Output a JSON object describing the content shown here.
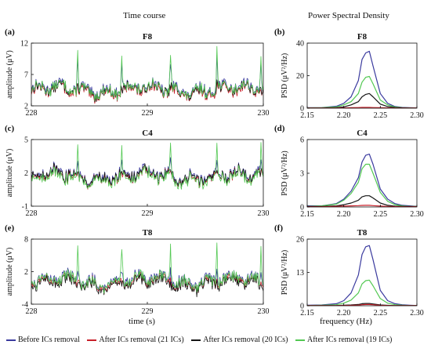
{
  "column_headers": {
    "left": "Time course",
    "right": "Power Spectral Density"
  },
  "x_axis_labels": {
    "time": "time (s)",
    "frequency": "frequency (Hz)"
  },
  "colors": {
    "before": "#3a3a9e",
    "ica21": "#c8202a",
    "ica20": "#151515",
    "ica19": "#52c852"
  },
  "legend": [
    {
      "key": "before",
      "label": "Before ICs removal"
    },
    {
      "key": "ica21",
      "label": "After ICs removal (21 ICs)"
    },
    {
      "key": "ica20",
      "label": "After ICs removal (20 ICs)"
    },
    {
      "key": "ica19",
      "label": "After ICs removal (19 ICs)"
    }
  ],
  "chart_data": [
    {
      "panel": "(a)",
      "type": "line",
      "title": "F8",
      "ylabel": "amplitude (μV)",
      "xlim": [
        228,
        230
      ],
      "ylim": [
        2,
        12
      ],
      "x_ticks": [
        "228",
        "229",
        "230"
      ],
      "y_ticks": [
        2,
        7,
        12
      ],
      "spike_times": [
        228.4,
        228.78,
        229.2,
        229.6,
        229.98
      ],
      "series": [
        {
          "key": "before",
          "baseline": 4.8,
          "spike_peak": 9.5
        },
        {
          "key": "ica21",
          "baseline": 4.3,
          "spike_peak": 5.3
        },
        {
          "key": "ica20",
          "baseline": 4.5,
          "spike_peak": 5.5
        },
        {
          "key": "ica19",
          "baseline": 4.6,
          "spike_peak": 10.8
        }
      ]
    },
    {
      "panel": "(b)",
      "type": "line",
      "title": "F8",
      "ylabel": "PSD (μV²/Hz)",
      "xlim": [
        2.15,
        2.3
      ],
      "ylim": [
        0,
        40
      ],
      "x_ticks": [
        "2.15",
        "2.20",
        "2.25",
        "2.30"
      ],
      "y_ticks": [
        0,
        20,
        40
      ],
      "x": [
        2.15,
        2.17,
        2.19,
        2.2,
        2.21,
        2.22,
        2.225,
        2.23,
        2.235,
        2.24,
        2.25,
        2.26,
        2.27,
        2.28,
        2.29,
        2.3
      ],
      "series": [
        {
          "key": "before",
          "values": [
            0.3,
            0.4,
            1.2,
            3.0,
            7.0,
            17.0,
            30.0,
            34.0,
            35.0,
            26.0,
            9.0,
            3.0,
            1.0,
            0.5,
            0.3,
            0.2
          ]
        },
        {
          "key": "ica19",
          "values": [
            0.2,
            0.3,
            0.8,
            2.0,
            4.0,
            9.0,
            16.0,
            19.0,
            19.5,
            15.0,
            5.0,
            2.0,
            0.7,
            0.3,
            0.2,
            0.1
          ]
        },
        {
          "key": "ica20",
          "values": [
            0.1,
            0.1,
            0.3,
            0.8,
            2.0,
            4.0,
            7.0,
            8.5,
            9.0,
            7.0,
            2.5,
            1.0,
            0.4,
            0.2,
            0.1,
            0.1
          ]
        },
        {
          "key": "ica21",
          "values": [
            0.05,
            0.05,
            0.1,
            0.2,
            0.3,
            0.4,
            0.5,
            0.5,
            0.5,
            0.4,
            0.3,
            0.2,
            0.1,
            0.05,
            0.05,
            0.05
          ]
        }
      ]
    },
    {
      "panel": "(c)",
      "type": "line",
      "title": "C4",
      "ylabel": "amplitude (μV)",
      "xlim": [
        228,
        230
      ],
      "ylim": [
        -1,
        5
      ],
      "x_ticks": [
        "228",
        "229",
        "230"
      ],
      "y_ticks": [
        -1,
        2,
        5
      ],
      "spike_times": [
        228.4,
        228.78,
        229.2,
        229.6,
        229.98
      ],
      "series": [
        {
          "key": "before",
          "baseline": 1.8,
          "spike_peak": 3.0
        },
        {
          "key": "ica21",
          "baseline": 1.6,
          "spike_peak": 2.0
        },
        {
          "key": "ica20",
          "baseline": 1.7,
          "spike_peak": 2.1
        },
        {
          "key": "ica19",
          "baseline": 1.5,
          "spike_peak": 4.5
        }
      ]
    },
    {
      "panel": "(d)",
      "type": "line",
      "title": "C4",
      "ylabel": "PSD (μV²/Hz)",
      "xlim": [
        2.15,
        2.3
      ],
      "ylim": [
        0,
        6
      ],
      "x_ticks": [
        "2.15",
        "2.20",
        "2.25",
        "2.30"
      ],
      "y_ticks": [
        0,
        3,
        6
      ],
      "x": [
        2.15,
        2.17,
        2.19,
        2.2,
        2.21,
        2.22,
        2.225,
        2.23,
        2.235,
        2.24,
        2.25,
        2.26,
        2.27,
        2.28,
        2.29,
        2.3
      ],
      "series": [
        {
          "key": "before",
          "values": [
            0.1,
            0.1,
            0.3,
            0.7,
            1.4,
            2.6,
            4.0,
            4.6,
            4.7,
            3.8,
            1.6,
            0.7,
            0.3,
            0.15,
            0.1,
            0.05
          ]
        },
        {
          "key": "ica19",
          "values": [
            0.05,
            0.1,
            0.25,
            0.6,
            1.2,
            2.2,
            3.4,
            3.8,
            3.8,
            3.0,
            1.3,
            0.5,
            0.2,
            0.1,
            0.05,
            0.05
          ]
        },
        {
          "key": "ica20",
          "values": [
            0.05,
            0.05,
            0.1,
            0.2,
            0.35,
            0.6,
            0.9,
            1.0,
            1.0,
            0.8,
            0.35,
            0.15,
            0.07,
            0.05,
            0.05,
            0.05
          ]
        },
        {
          "key": "ica21",
          "values": [
            0.02,
            0.02,
            0.05,
            0.08,
            0.1,
            0.12,
            0.14,
            0.15,
            0.15,
            0.12,
            0.08,
            0.05,
            0.03,
            0.02,
            0.02,
            0.02
          ]
        }
      ]
    },
    {
      "panel": "(e)",
      "type": "line",
      "title": "T8",
      "ylabel": "amplitude (μV)",
      "xlim": [
        228,
        230
      ],
      "ylim": [
        -4,
        8
      ],
      "x_ticks": [
        "228",
        "229",
        "230"
      ],
      "y_ticks": [
        -4,
        2,
        8
      ],
      "spike_times": [
        228.4,
        228.78,
        229.2,
        229.6,
        229.98
      ],
      "series": [
        {
          "key": "before",
          "baseline": 0.5,
          "spike_peak": 2.5
        },
        {
          "key": "ica21",
          "baseline": 0.0,
          "spike_peak": 0.6
        },
        {
          "key": "ica20",
          "baseline": -0.3,
          "spike_peak": 0.3
        },
        {
          "key": "ica19",
          "baseline": 0.3,
          "spike_peak": 7.2
        }
      ]
    },
    {
      "panel": "(f)",
      "type": "line",
      "title": "T8",
      "ylabel": "PSD (μV²/Hz)",
      "xlim": [
        2.15,
        2.3
      ],
      "ylim": [
        0,
        26
      ],
      "x_ticks": [
        "2.15",
        "2.20",
        "2.25",
        "2.30"
      ],
      "y_ticks": [
        0,
        13,
        26
      ],
      "x": [
        2.15,
        2.17,
        2.19,
        2.2,
        2.21,
        2.22,
        2.225,
        2.23,
        2.235,
        2.24,
        2.25,
        2.26,
        2.27,
        2.28,
        2.29,
        2.3
      ],
      "series": [
        {
          "key": "before",
          "values": [
            0.2,
            0.3,
            0.8,
            2.0,
            5.0,
            12.0,
            20.0,
            23.0,
            23.5,
            18.0,
            6.0,
            2.0,
            0.8,
            0.4,
            0.2,
            0.1
          ]
        },
        {
          "key": "ica19",
          "values": [
            0.1,
            0.2,
            0.4,
            1.0,
            2.2,
            5.0,
            8.5,
            9.8,
            10.0,
            7.8,
            2.8,
            1.0,
            0.4,
            0.2,
            0.1,
            0.05
          ]
        },
        {
          "key": "ica20",
          "values": [
            0.05,
            0.05,
            0.1,
            0.2,
            0.3,
            0.5,
            0.8,
            0.9,
            0.9,
            0.7,
            0.3,
            0.15,
            0.05,
            0.05,
            0.05,
            0.05
          ]
        },
        {
          "key": "ica21",
          "values": [
            0.02,
            0.02,
            0.05,
            0.1,
            0.15,
            0.25,
            0.4,
            0.5,
            0.5,
            0.4,
            0.15,
            0.08,
            0.03,
            0.02,
            0.02,
            0.02
          ]
        }
      ]
    }
  ]
}
